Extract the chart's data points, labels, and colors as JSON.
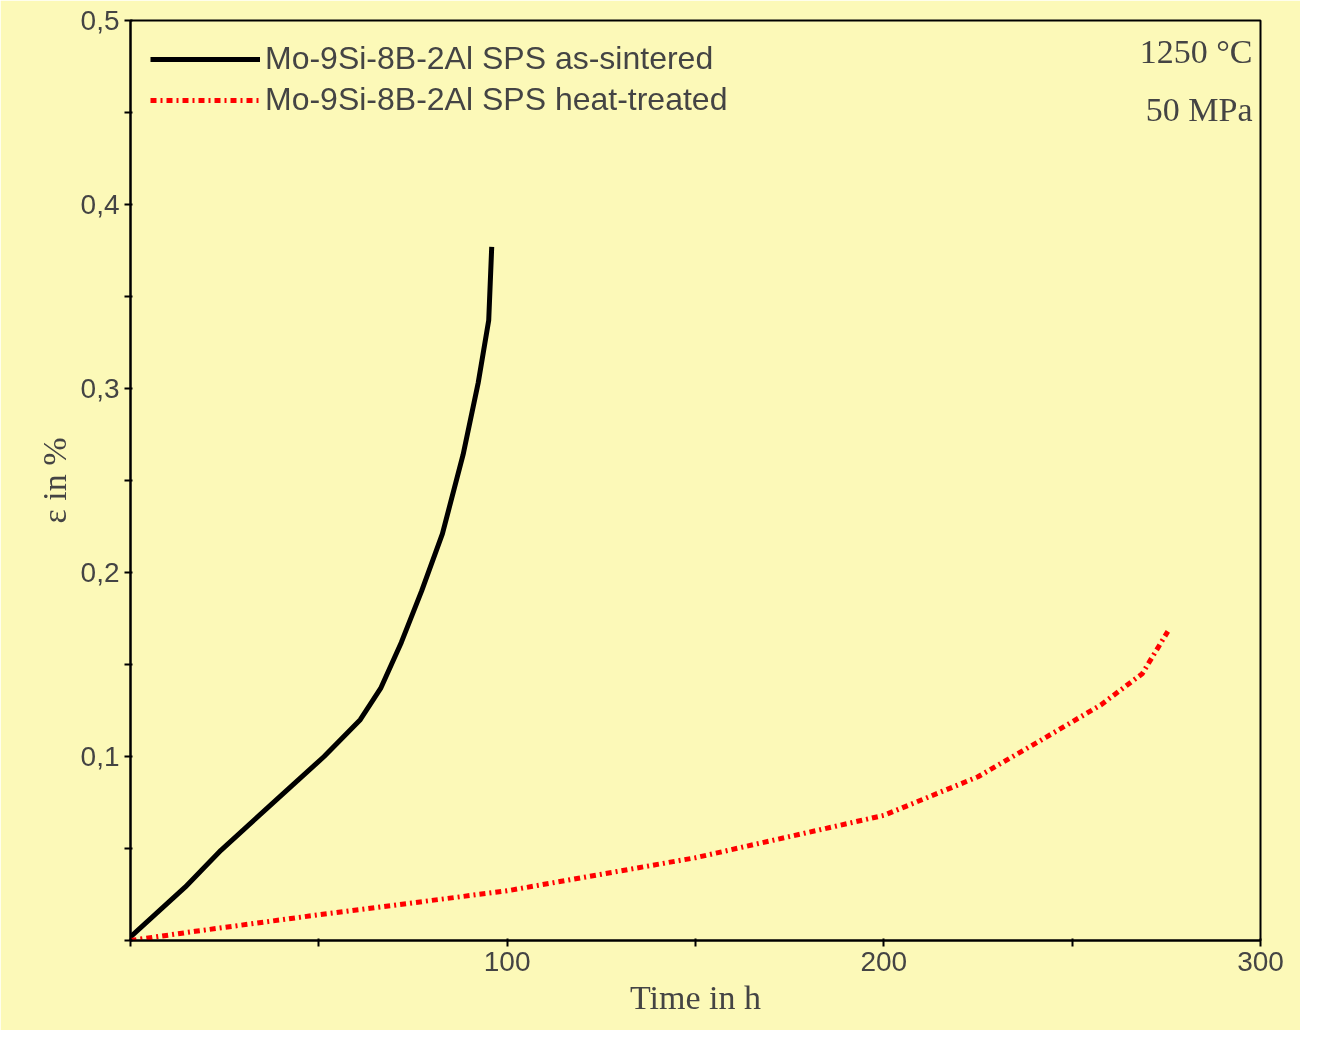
{
  "chart_data": {
    "type": "line",
    "xlabel": "Time in h",
    "ylabel": "ε in %",
    "annotations": [
      "1250 °C",
      "50 MPa"
    ],
    "xlim": [
      0,
      300
    ],
    "ylim": [
      0,
      0.5
    ],
    "xticks": [
      {
        "value": 0,
        "label": null
      },
      {
        "value": 50,
        "label": null
      },
      100,
      {
        "value": 150,
        "label": null
      },
      200,
      {
        "value": 250,
        "label": null
      },
      300
    ],
    "yticks": [
      {
        "value": 0,
        "label": null
      },
      {
        "value": 0.05,
        "label": null
      },
      {
        "value": 0.1,
        "label": "0,1"
      },
      {
        "value": 0.15,
        "label": null
      },
      {
        "value": 0.2,
        "label": "0,2"
      },
      {
        "value": 0.25,
        "label": null
      },
      {
        "value": 0.3,
        "label": "0,3"
      },
      {
        "value": 0.35,
        "label": null
      },
      {
        "value": 0.4,
        "label": "0,4"
      },
      {
        "value": 0.45,
        "label": null
      },
      {
        "value": 0.5,
        "label": "0,5"
      }
    ],
    "grid": false,
    "legend": "top left",
    "marker": "none",
    "series": [
      {
        "name": "Mo-9Si-8B-2Al SPS as-sintered",
        "color": "#000000",
        "line_style": "solid",
        "x": [
          0,
          14.5,
          24,
          39,
          51.4,
          61,
          66.4,
          71.9,
          77.3,
          82.8,
          88.3,
          92.3,
          95.1,
          95.9
        ],
        "values": [
          0.002,
          0.029,
          0.049,
          0.077,
          0.1,
          0.12,
          0.137,
          0.162,
          0.19,
          0.221,
          0.264,
          0.303,
          0.337,
          0.377
        ]
      },
      {
        "name": "Mo-9Si-8B-2Al SPS heat-treated",
        "color": "#ff0000",
        "line_style": "dashdot",
        "x": [
          0,
          17.2,
          50,
          100,
          150,
          200,
          225,
          241,
          257.6,
          268.6,
          275.4
        ],
        "values": [
          0,
          0.005,
          0.014,
          0.027,
          0.045,
          0.068,
          0.089,
          0.108,
          0.128,
          0.145,
          0.168
        ]
      }
    ]
  }
}
